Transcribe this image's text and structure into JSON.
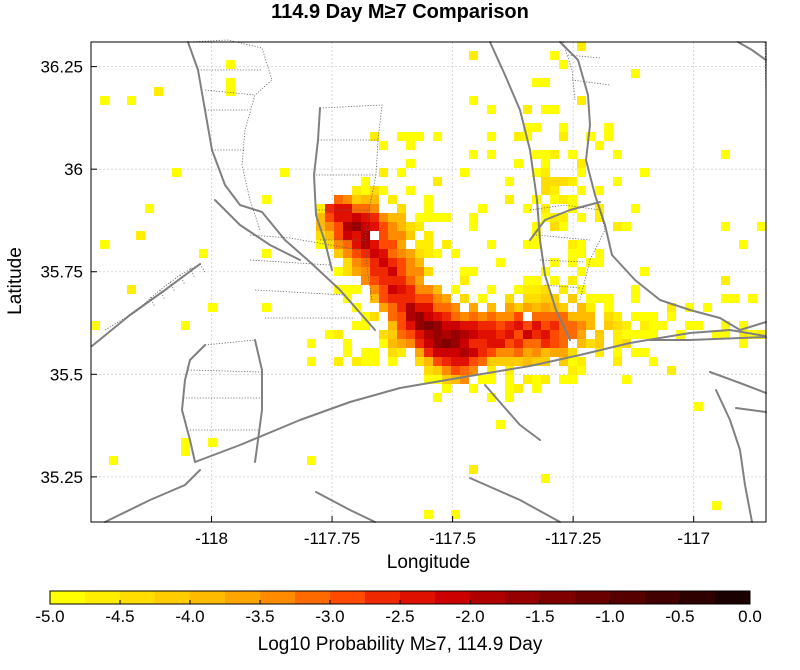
{
  "title": "114.9 Day M≥7 Comparison",
  "map": {
    "x_label": "Longitude",
    "y_label": "Latitude",
    "lon_range": [
      -118.25,
      -116.85
    ],
    "lat_range": [
      35.14,
      36.31
    ],
    "x_ticks": [
      {
        "value": -118,
        "label": "-118"
      },
      {
        "value": -117.75,
        "label": "-117.75"
      },
      {
        "value": -117.5,
        "label": "-117.5"
      },
      {
        "value": -117.25,
        "label": "-117.25"
      },
      {
        "value": -117,
        "label": "-117"
      }
    ],
    "y_ticks": [
      {
        "value": 36.25,
        "label": "36.25"
      },
      {
        "value": 36,
        "label": "36"
      },
      {
        "value": 35.75,
        "label": "35.75"
      },
      {
        "value": 35.5,
        "label": "35.5"
      },
      {
        "value": 35.25,
        "label": "35.25"
      }
    ],
    "grid": "dashed",
    "fault_color": "#808080"
  },
  "colorbar": {
    "label": "Log10 Probability M≥7, 114.9 Day",
    "range": [
      -5.0,
      0.0
    ],
    "ticks": [
      "-5.0",
      "-4.5",
      "-4.0",
      "-3.5",
      "-3.0",
      "-2.5",
      "-2.0",
      "-1.5",
      "-1.0",
      "-0.5",
      "0.0"
    ],
    "colors": [
      "#ffff00",
      "#ffee00",
      "#ffdd00",
      "#ffcc00",
      "#ffbb00",
      "#ffa500",
      "#ff8c00",
      "#ff6a00",
      "#ff4a00",
      "#f02800",
      "#e01000",
      "#cc0000",
      "#b00000",
      "#960000",
      "#800000",
      "#6a0000",
      "#560000",
      "#420000",
      "#2e0000",
      "#1a0000",
      "#000000"
    ]
  }
}
